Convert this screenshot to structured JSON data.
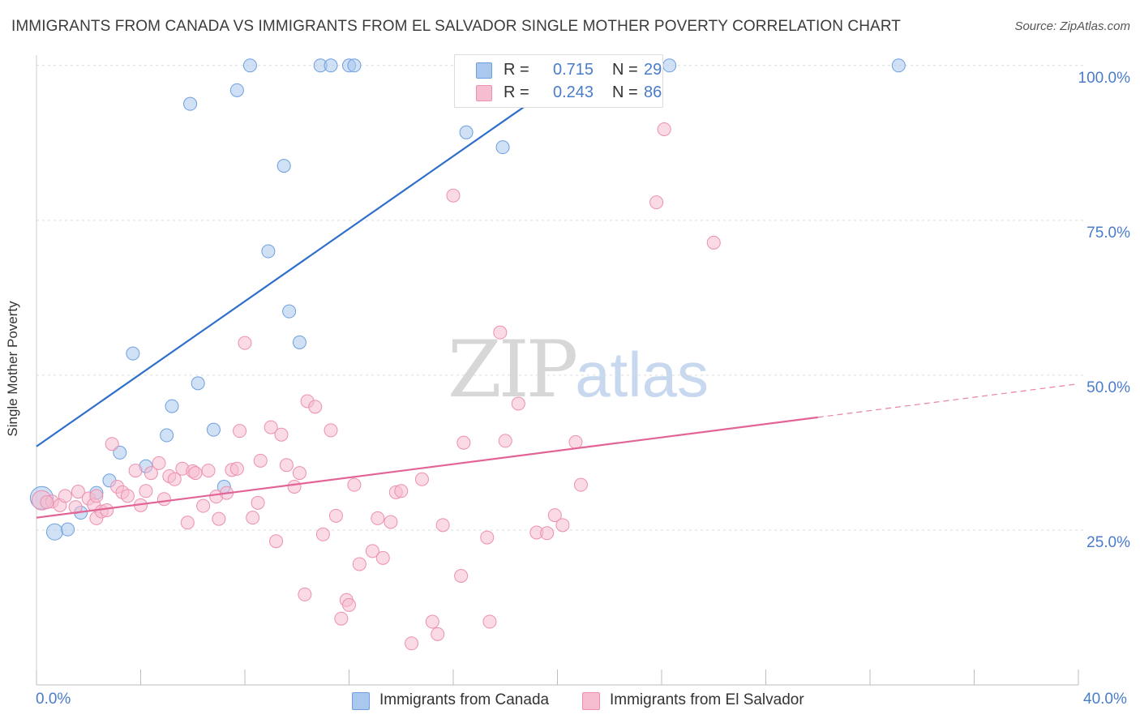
{
  "header": {
    "title": "IMMIGRANTS FROM CANADA VS IMMIGRANTS FROM EL SALVADOR SINGLE MOTHER POVERTY CORRELATION CHART",
    "source": "Source: ZipAtlas.com"
  },
  "watermark": {
    "zip": "ZIP",
    "atlas": "atlas"
  },
  "legend": {
    "canada": {
      "r_label": "R =",
      "r_value": "0.715",
      "n_label": "N =",
      "n_value": "29"
    },
    "elsalvador": {
      "r_label": "R =",
      "r_value": "0.243",
      "n_label": "N =",
      "n_value": "86"
    }
  },
  "axis": {
    "ylabel": "Single Mother Poverty",
    "yticks": [
      "100.0%",
      "75.0%",
      "50.0%",
      "25.0%"
    ],
    "xtick_left": "0.0%",
    "xtick_right": "40.0%"
  },
  "colors": {
    "canada_fill": "#aac8ee",
    "canada_stroke": "#6d9fde",
    "canada_line": "#2f6fcc",
    "elsalvador_fill": "#f6bcd0",
    "elsalvador_stroke": "#ec8fb0",
    "elsalvador_line": "#e26496"
  },
  "chart_data": {
    "type": "scatter",
    "xlim": [
      0,
      40
    ],
    "ylim": [
      0,
      100
    ],
    "grid": true,
    "legend_position": "top-center",
    "series": [
      {
        "name": "Immigrants from Canada",
        "r": 0.715,
        "n": 29,
        "trend": {
          "x0": 0,
          "y0": 38.5,
          "x1": 21.0,
          "y1": 100
        },
        "points": [
          [
            0.2,
            30.2,
            14
          ],
          [
            0.7,
            24.7,
            10
          ],
          [
            1.2,
            25.1,
            8
          ],
          [
            1.7,
            27.8,
            8
          ],
          [
            2.3,
            31.0,
            8
          ],
          [
            2.8,
            33.0,
            8
          ],
          [
            3.2,
            37.5,
            8
          ],
          [
            3.7,
            53.5,
            8
          ],
          [
            4.2,
            35.3,
            8
          ],
          [
            5.0,
            40.3,
            8
          ],
          [
            5.2,
            45.0,
            8
          ],
          [
            5.9,
            93.8,
            8
          ],
          [
            6.2,
            48.7,
            8
          ],
          [
            6.8,
            41.2,
            8
          ],
          [
            7.2,
            32.0,
            8
          ],
          [
            7.7,
            96.0,
            8
          ],
          [
            8.2,
            100,
            8
          ],
          [
            8.9,
            70.0,
            8
          ],
          [
            9.5,
            83.8,
            8
          ],
          [
            9.7,
            60.3,
            8
          ],
          [
            10.1,
            55.3,
            8
          ],
          [
            10.9,
            100,
            8
          ],
          [
            11.3,
            100,
            8
          ],
          [
            12.0,
            100,
            8
          ],
          [
            12.2,
            100,
            8
          ],
          [
            16.5,
            89.2,
            8
          ],
          [
            17.9,
            86.8,
            8
          ],
          [
            24.3,
            100,
            8
          ],
          [
            33.1,
            100,
            8
          ]
        ]
      },
      {
        "name": "Immigrants from El Salvador",
        "r": 0.243,
        "n": 86,
        "trend": {
          "x0": 0,
          "y0": 27.0,
          "x1": 30.0,
          "y1": 43.2,
          "dash_x1": 40.0,
          "dash_y1": 48.6
        },
        "points": [
          [
            0.2,
            29.8,
            12
          ],
          [
            0.6,
            29.6,
            8
          ],
          [
            0.9,
            29.0,
            8
          ],
          [
            1.1,
            30.5,
            8
          ],
          [
            1.5,
            28.7,
            8
          ],
          [
            1.6,
            31.2,
            8
          ],
          [
            2.0,
            30.1,
            8
          ],
          [
            2.2,
            29.1,
            8
          ],
          [
            2.3,
            30.5,
            8
          ],
          [
            2.3,
            26.9,
            8
          ],
          [
            2.5,
            28.0,
            8
          ],
          [
            2.7,
            28.2,
            8
          ],
          [
            2.9,
            38.9,
            8
          ],
          [
            3.1,
            32.0,
            8
          ],
          [
            3.3,
            31.1,
            8
          ],
          [
            3.5,
            30.5,
            8
          ],
          [
            3.8,
            34.6,
            8
          ],
          [
            4.0,
            29.0,
            8
          ],
          [
            4.2,
            31.3,
            8
          ],
          [
            4.4,
            34.2,
            8
          ],
          [
            4.7,
            35.8,
            8
          ],
          [
            4.9,
            30.0,
            8
          ],
          [
            5.1,
            33.7,
            8
          ],
          [
            5.3,
            33.2,
            8
          ],
          [
            5.6,
            34.9,
            8
          ],
          [
            5.8,
            26.2,
            8
          ],
          [
            6.0,
            34.5,
            8
          ],
          [
            6.1,
            34.2,
            8
          ],
          [
            6.4,
            28.9,
            8
          ],
          [
            6.6,
            34.6,
            8
          ],
          [
            6.9,
            30.4,
            8
          ],
          [
            7.0,
            26.8,
            8
          ],
          [
            7.3,
            31.0,
            8
          ],
          [
            7.5,
            34.7,
            8
          ],
          [
            7.7,
            34.9,
            8
          ],
          [
            7.8,
            41.0,
            8
          ],
          [
            8.0,
            55.2,
            8
          ],
          [
            8.3,
            27.0,
            8
          ],
          [
            8.5,
            29.4,
            8
          ],
          [
            8.6,
            36.2,
            8
          ],
          [
            9.0,
            41.6,
            8
          ],
          [
            9.2,
            23.2,
            8
          ],
          [
            9.4,
            40.4,
            8
          ],
          [
            9.6,
            35.5,
            8
          ],
          [
            9.9,
            32.0,
            8
          ],
          [
            10.1,
            34.2,
            8
          ],
          [
            10.3,
            14.6,
            8
          ],
          [
            10.4,
            45.8,
            8
          ],
          [
            10.7,
            44.9,
            8
          ],
          [
            11.0,
            24.3,
            8
          ],
          [
            11.3,
            41.1,
            8
          ],
          [
            11.5,
            27.3,
            8
          ],
          [
            11.7,
            10.7,
            8
          ],
          [
            11.9,
            13.7,
            8
          ],
          [
            12.0,
            12.9,
            8
          ],
          [
            12.2,
            32.3,
            8
          ],
          [
            12.4,
            19.5,
            8
          ],
          [
            12.9,
            21.6,
            8
          ],
          [
            13.1,
            26.9,
            8
          ],
          [
            13.3,
            20.5,
            8
          ],
          [
            13.6,
            26.3,
            8
          ],
          [
            13.8,
            31.1,
            8
          ],
          [
            14.0,
            31.3,
            8
          ],
          [
            14.4,
            6.7,
            8
          ],
          [
            14.8,
            33.2,
            8
          ],
          [
            15.2,
            10.2,
            8
          ],
          [
            15.4,
            8.2,
            8
          ],
          [
            15.6,
            25.8,
            8
          ],
          [
            16.0,
            79.0,
            8
          ],
          [
            16.3,
            17.6,
            8
          ],
          [
            16.4,
            39.1,
            8
          ],
          [
            17.3,
            23.8,
            8
          ],
          [
            17.4,
            10.2,
            8
          ],
          [
            17.8,
            56.9,
            8
          ],
          [
            18.0,
            39.4,
            8
          ],
          [
            18.5,
            45.4,
            8
          ],
          [
            19.2,
            24.6,
            8
          ],
          [
            19.6,
            24.5,
            8
          ],
          [
            19.9,
            27.4,
            8
          ],
          [
            20.2,
            25.8,
            8
          ],
          [
            20.7,
            39.2,
            8
          ],
          [
            20.9,
            32.3,
            8
          ],
          [
            23.8,
            77.9,
            8
          ],
          [
            24.1,
            89.7,
            8
          ],
          [
            26.0,
            71.4,
            8
          ],
          [
            0.4,
            29.5,
            8
          ]
        ]
      }
    ]
  }
}
